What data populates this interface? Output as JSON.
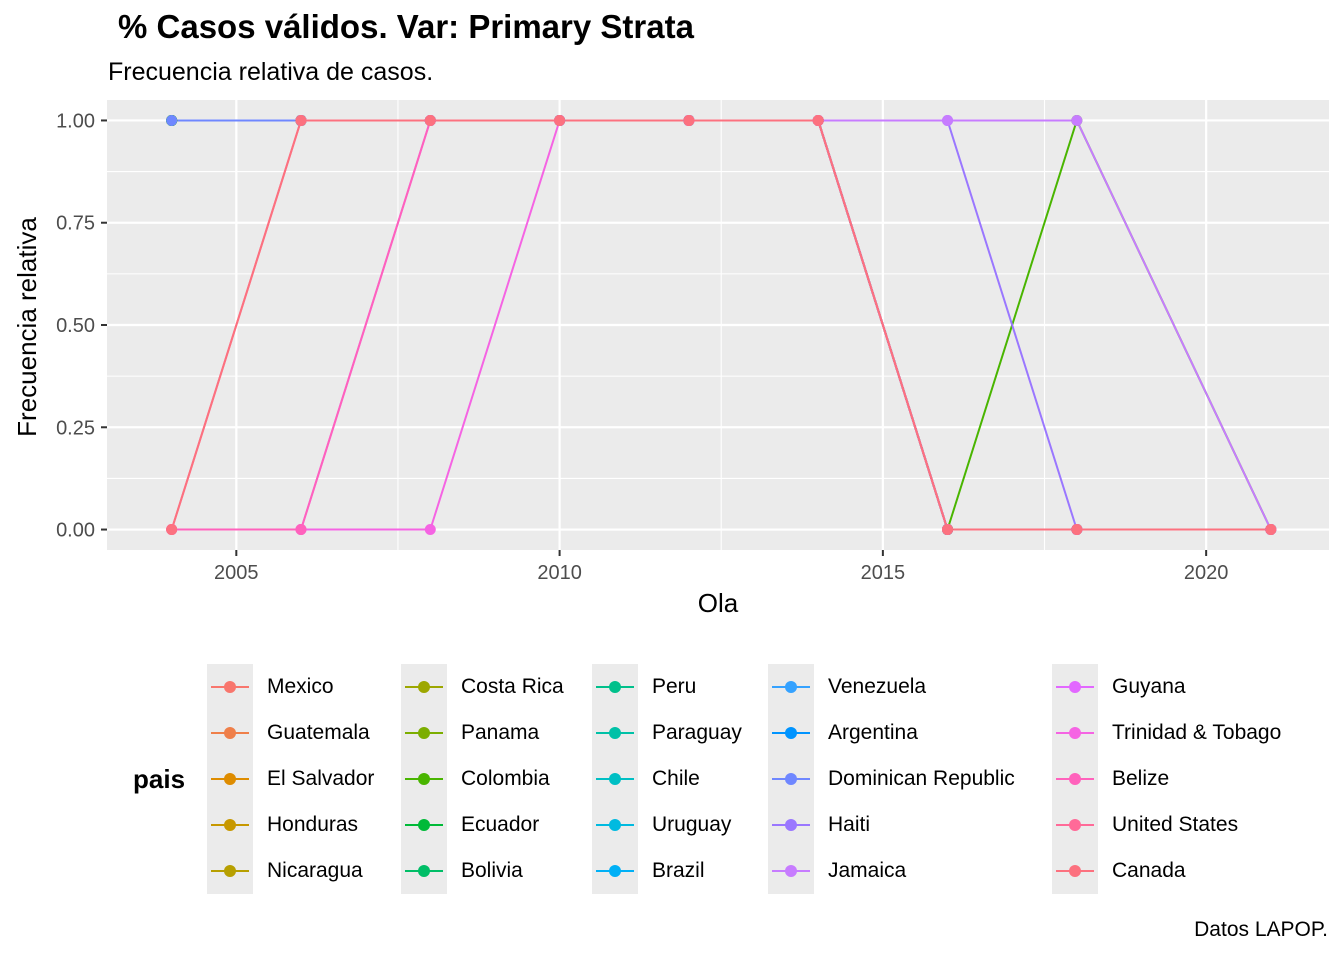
{
  "chart_data": {
    "type": "line",
    "title": "% Casos válidos. Var: Primary Strata",
    "subtitle": "Frecuencia relativa de casos.",
    "caption": "Datos LAPOP.",
    "xlabel": "Ola",
    "ylabel": "Frecuencia relativa",
    "xlim": [
      2003.0,
      2021.9
    ],
    "ylim": [
      -0.05,
      1.05
    ],
    "xticks": [
      2005,
      2010,
      2015,
      2020
    ],
    "yticks": [
      0.0,
      0.25,
      0.5,
      0.75,
      1.0
    ],
    "xtick_labels": [
      "2005",
      "2010",
      "2015",
      "2020"
    ],
    "ytick_labels": [
      "0.00",
      "0.25",
      "0.50",
      "0.75",
      "1.00"
    ],
    "grid": true,
    "legend_title": "pais",
    "legend_position": "bottom",
    "series": [
      {
        "name": "Mexico",
        "color": "#F8766D",
        "x": [
          2004,
          2006,
          2008,
          2010,
          2012,
          2014,
          2016,
          2018,
          2021
        ],
        "y": [
          1,
          1,
          1,
          1,
          1,
          1,
          0,
          0,
          0
        ]
      },
      {
        "name": "Guatemala",
        "color": "#EF7F49",
        "x": [
          2004,
          2006,
          2008,
          2010,
          2012,
          2014,
          2016,
          2018,
          2021
        ],
        "y": [
          1,
          1,
          1,
          1,
          1,
          1,
          0,
          0,
          0
        ]
      },
      {
        "name": "El Salvador",
        "color": "#DE8C00",
        "x": [
          2004,
          2006,
          2008,
          2010,
          2012,
          2014,
          2016,
          2018,
          2021
        ],
        "y": [
          1,
          1,
          1,
          1,
          1,
          1,
          0,
          0,
          0
        ]
      },
      {
        "name": "Honduras",
        "color": "#C79800",
        "x": [
          2004,
          2006,
          2008,
          2010,
          2012,
          2014,
          2016,
          2018,
          2021
        ],
        "y": [
          1,
          1,
          1,
          1,
          1,
          1,
          0,
          0,
          0
        ]
      },
      {
        "name": "Nicaragua",
        "color": "#B79F00",
        "x": [
          2004,
          2006,
          2008,
          2010,
          2012,
          2014,
          2016,
          2018,
          2021
        ],
        "y": [
          1,
          1,
          1,
          1,
          1,
          1,
          0,
          0,
          0
        ]
      },
      {
        "name": "Costa Rica",
        "color": "#9DA700",
        "x": [
          2004,
          2006,
          2008,
          2010,
          2012,
          2014,
          2016,
          2018,
          2021
        ],
        "y": [
          1,
          1,
          1,
          1,
          1,
          1,
          0,
          0,
          0
        ]
      },
      {
        "name": "Panama",
        "color": "#7CAE00",
        "x": [
          2004,
          2006,
          2008,
          2010,
          2012,
          2014,
          2016,
          2018,
          2021
        ],
        "y": [
          1,
          1,
          1,
          1,
          1,
          1,
          0,
          0,
          0
        ]
      },
      {
        "name": "Colombia",
        "color": "#49B500",
        "x": [
          2004,
          2006,
          2008,
          2010,
          2012,
          2014,
          2016,
          2018,
          2021
        ],
        "y": [
          1,
          1,
          1,
          1,
          1,
          1,
          0,
          1,
          0
        ]
      },
      {
        "name": "Ecuador",
        "color": "#00BA38",
        "x": [
          2004,
          2006,
          2008,
          2010,
          2012,
          2014,
          2016,
          2018,
          2021
        ],
        "y": [
          1,
          1,
          1,
          1,
          1,
          1,
          0,
          0,
          0
        ]
      },
      {
        "name": "Bolivia",
        "color": "#00BE67",
        "x": [
          2004,
          2006,
          2008,
          2010,
          2012,
          2014,
          2016,
          2018,
          2021
        ],
        "y": [
          1,
          1,
          1,
          1,
          1,
          1,
          0,
          0,
          0
        ]
      },
      {
        "name": "Peru",
        "color": "#00C08B",
        "x": [
          2006,
          2008,
          2010,
          2012,
          2014,
          2016,
          2018,
          2021
        ],
        "y": [
          1,
          1,
          1,
          1,
          1,
          0,
          0,
          0
        ]
      },
      {
        "name": "Paraguay",
        "color": "#00C1A7",
        "x": [
          2006,
          2008,
          2010,
          2012,
          2014,
          2016,
          2018,
          2021
        ],
        "y": [
          1,
          1,
          1,
          1,
          1,
          0,
          0,
          0
        ]
      },
      {
        "name": "Chile",
        "color": "#00BFC4",
        "x": [
          2006,
          2008,
          2010,
          2012,
          2014,
          2016,
          2018,
          2021
        ],
        "y": [
          1,
          1,
          1,
          1,
          1,
          0,
          0,
          0
        ]
      },
      {
        "name": "Uruguay",
        "color": "#00BAE0",
        "x": [
          2006,
          2008,
          2010,
          2012,
          2014,
          2016,
          2018,
          2021
        ],
        "y": [
          1,
          1,
          1,
          1,
          1,
          0,
          0,
          0
        ]
      },
      {
        "name": "Brazil",
        "color": "#00B0F6",
        "x": [
          2006,
          2008,
          2010,
          2012,
          2014,
          2016,
          2018,
          2021
        ],
        "y": [
          1,
          1,
          1,
          1,
          1,
          0,
          0,
          0
        ]
      },
      {
        "name": "Venezuela",
        "color": "#35A2FF",
        "x": [
          2006,
          2008,
          2010,
          2012,
          2014,
          2016,
          2018,
          2021
        ],
        "y": [
          1,
          1,
          1,
          1,
          1,
          0,
          0,
          0
        ]
      },
      {
        "name": "Argentina",
        "color": "#0094FF",
        "x": [
          2008,
          2010,
          2012,
          2014,
          2016,
          2018,
          2021
        ],
        "y": [
          1,
          1,
          1,
          1,
          0,
          0,
          0
        ]
      },
      {
        "name": "Dominican Republic",
        "color": "#6F87FF",
        "x": [
          2004,
          2006,
          2008,
          2010,
          2012,
          2014,
          2016,
          2018,
          2021
        ],
        "y": [
          1,
          1,
          1,
          1,
          1,
          1,
          0,
          0,
          0
        ]
      },
      {
        "name": "Haiti",
        "color": "#9A77FF",
        "x": [
          2006,
          2008,
          2010,
          2012,
          2014,
          2016,
          2018,
          2021
        ],
        "y": [
          1,
          1,
          1,
          1,
          1,
          1,
          0,
          0
        ]
      },
      {
        "name": "Jamaica",
        "color": "#C77CFF",
        "x": [
          2006,
          2008,
          2010,
          2012,
          2014,
          2016,
          2018,
          2021
        ],
        "y": [
          1,
          1,
          1,
          1,
          1,
          1,
          1,
          0
        ]
      },
      {
        "name": "Guyana",
        "color": "#E268FF",
        "x": [
          2004,
          2006,
          2008,
          2010,
          2012,
          2014,
          2016,
          2018,
          2021
        ],
        "y": [
          0,
          0,
          1,
          1,
          1,
          1,
          0,
          0,
          0
        ]
      },
      {
        "name": "Trinidad & Tobago",
        "color": "#F564E3",
        "x": [
          2004,
          2006,
          2008,
          2010,
          2012,
          2014,
          2016,
          2018,
          2021
        ],
        "y": [
          0,
          0,
          0,
          1,
          1,
          1,
          0,
          0,
          0
        ]
      },
      {
        "name": "Belize",
        "color": "#FF62BC",
        "x": [
          2004,
          2006,
          2008,
          2010,
          2012,
          2014,
          2016,
          2018,
          2021
        ],
        "y": [
          0,
          0,
          1,
          1,
          1,
          1,
          0,
          0,
          0
        ]
      },
      {
        "name": "United States",
        "color": "#FF6A98",
        "x": [
          2004,
          2006,
          2008,
          2010,
          2012,
          2014,
          2016,
          2018,
          2021
        ],
        "y": [
          0,
          1,
          1,
          1,
          1,
          1,
          0,
          0,
          0
        ]
      },
      {
        "name": "Canada",
        "color": "#FC717F",
        "x": [
          2004,
          2006,
          2008,
          2010,
          2012,
          2014,
          2016,
          2018,
          2021
        ],
        "y": [
          0,
          1,
          1,
          1,
          1,
          1,
          0,
          0,
          0
        ]
      }
    ]
  }
}
